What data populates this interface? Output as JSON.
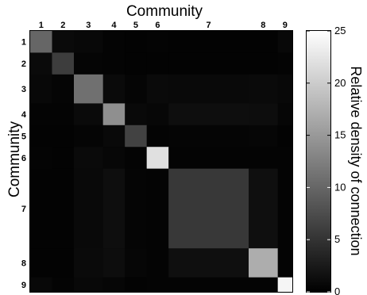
{
  "chart_data": {
    "type": "heatmap",
    "title": "Community",
    "xlabel": "Community",
    "ylabel": "Community",
    "communities": [
      "1",
      "2",
      "3",
      "4",
      "5",
      "6",
      "7",
      "8",
      "9"
    ],
    "community_sizes": [
      3,
      3,
      4,
      3,
      3,
      3,
      11,
      4,
      2
    ],
    "values": [
      [
        10,
        1,
        0.8,
        0.4,
        0.3,
        0.4,
        0.3,
        0.3,
        0.8
      ],
      [
        1,
        6,
        0.5,
        0.4,
        0.3,
        0.3,
        0.3,
        0.3,
        0.4
      ],
      [
        0.8,
        0.5,
        11,
        1,
        0.5,
        1,
        0.9,
        1,
        0.8
      ],
      [
        0.4,
        0.4,
        1,
        14,
        0.9,
        0.7,
        1.4,
        1.3,
        0.6
      ],
      [
        0.3,
        0.3,
        0.5,
        0.9,
        6.5,
        0.4,
        0.5,
        0.6,
        0.3
      ],
      [
        0.4,
        0.3,
        1,
        0.7,
        0.4,
        22,
        0.4,
        0.4,
        0.4
      ],
      [
        0.3,
        0.3,
        0.9,
        1.4,
        0.5,
        0.4,
        5.5,
        1.5,
        0.4
      ],
      [
        0.3,
        0.3,
        1,
        1.3,
        0.6,
        0.4,
        1.5,
        17,
        0.4
      ],
      [
        0.8,
        0.4,
        0.8,
        0.6,
        0.3,
        0.4,
        0.4,
        0.4,
        24
      ]
    ],
    "colorbar": {
      "label": "Relative density of connection",
      "range": [
        0,
        25
      ],
      "ticks": [
        "0",
        "5",
        "10",
        "15",
        "20",
        "25"
      ],
      "colormap": "gray"
    },
    "grid": false
  }
}
